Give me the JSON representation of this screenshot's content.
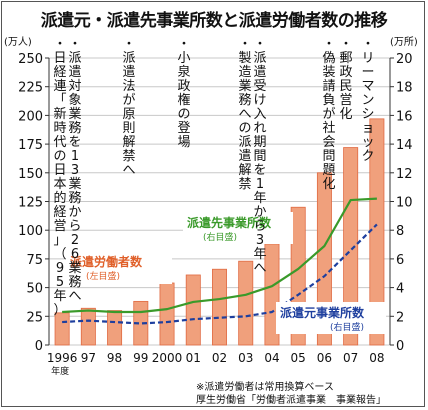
{
  "title": "派遣元・派遣先事業所数と派遣労働者数の推移",
  "source_lines": [
    "※派遣労働者は常用換算ベース",
    "厚生労働省「労働者派遣事業　事業報告」"
  ],
  "colors": {
    "bar_fill": "#f0a07c",
    "bar_edge": "#e06a42",
    "shipper_line": "#3a9a2a",
    "dest_line": "#1e3f9e",
    "worker_label": "#e0602a",
    "grid": "#c8c8c8"
  },
  "chart_data": {
    "type": "bar",
    "x_first_label": "1996",
    "x_first_sublabel": "年度",
    "categories": [
      "1996",
      "97",
      "98",
      "99",
      "2000",
      "01",
      "02",
      "03",
      "04",
      "05",
      "06",
      "07",
      "08"
    ],
    "left_axis": {
      "unit": "(万人)",
      "min": 0,
      "max": 250,
      "ticks": [
        0,
        25,
        50,
        75,
        100,
        125,
        150,
        175,
        200,
        225,
        250
      ]
    },
    "right_axis": {
      "unit": "(万所)",
      "min": 0,
      "max": 20,
      "ticks": [
        0,
        2,
        4,
        6,
        8,
        10,
        12,
        14,
        16,
        18,
        20
      ]
    },
    "series": [
      {
        "name": "派遣労働者数",
        "sublabel": "(左目盛)",
        "kind": "bar",
        "axis": "left",
        "values": [
          28,
          32,
          30,
          38,
          54,
          61,
          66,
          73,
          88,
          120,
          150,
          172,
          197
        ]
      },
      {
        "name": "派遣先事業所数",
        "sublabel": "(右目盛)",
        "kind": "line",
        "axis": "right",
        "values": [
          2.3,
          2.4,
          2.3,
          2.3,
          2.5,
          3.0,
          3.2,
          3.5,
          4.1,
          5.3,
          6.9,
          10.1,
          10.2
        ]
      },
      {
        "name": "派遣元事業所数",
        "sublabel": "(右目盛)",
        "kind": "dashed-line",
        "axis": "right",
        "values": [
          1.6,
          1.7,
          1.6,
          1.5,
          1.6,
          1.8,
          1.9,
          2.0,
          2.3,
          3.5,
          4.8,
          6.6,
          8.4
        ]
      }
    ],
    "annotations": [
      {
        "year": "96",
        "text": "・日経連「新時代の日本的経営」（95年）"
      },
      {
        "year": "96",
        "text": "・派遣対象業務を13業務から26業務へ"
      },
      {
        "year": "99",
        "text": "・派遣法が原則解禁へ"
      },
      {
        "year": "01",
        "text": "・小泉政権の登場"
      },
      {
        "year": "04",
        "text": "・派遣受け入れ期間を1年から3年へ"
      },
      {
        "year": "04",
        "text": "・製造業務への派遣解禁"
      },
      {
        "year": "06",
        "text": "・偽装請負が社会問題化"
      },
      {
        "year": "07",
        "text": "・郵政民営化"
      },
      {
        "year": "08",
        "text": "・リーマンショック"
      }
    ],
    "grid": true
  }
}
